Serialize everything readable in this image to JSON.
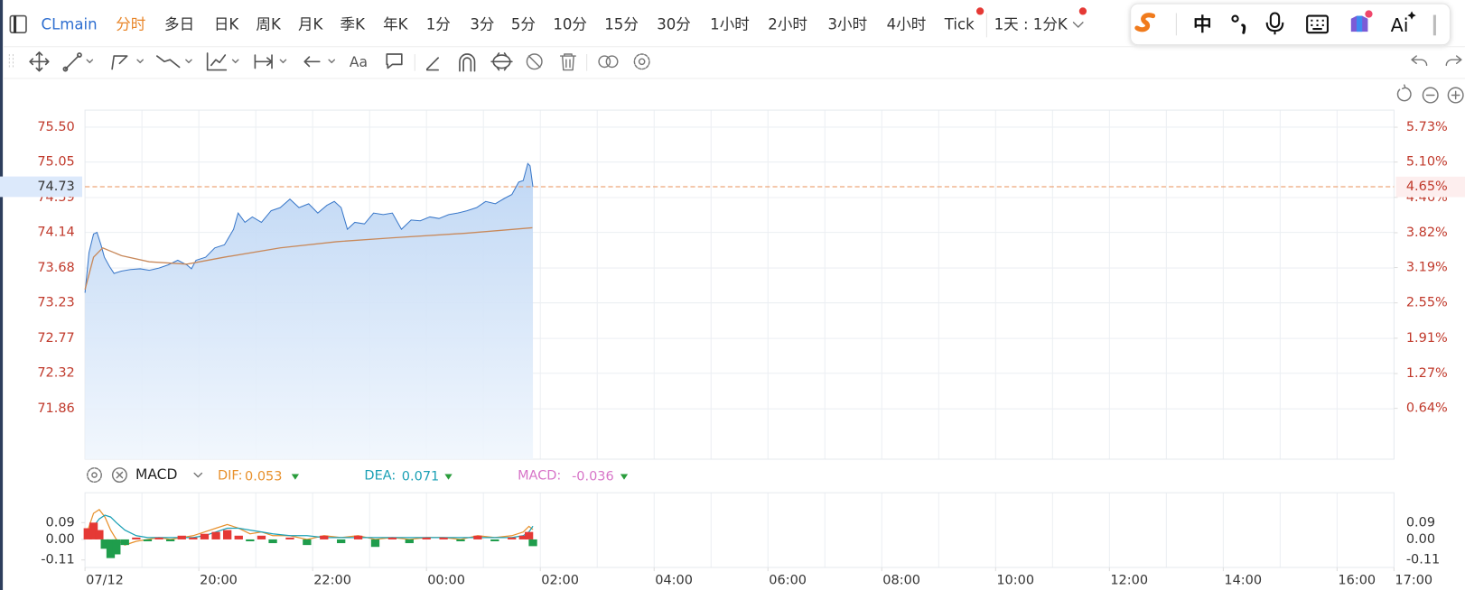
{
  "toolbar": {
    "symbol": "CLmain",
    "periods": [
      "分时",
      "多日",
      "日K",
      "周K",
      "月K",
      "季K",
      "年K",
      "1分",
      "3分",
      "5分",
      "10分",
      "15分",
      "30分",
      "1小时",
      "2小时",
      "3小时",
      "4小时",
      "Tick",
      "1天 : 1分K"
    ],
    "active_period_index": 0
  },
  "ime_toolbar": {
    "mode": "中",
    "ai": "Ai"
  },
  "drawing_toolbar": {
    "text_tool": "Aa"
  },
  "chart_data": [
    {
      "type": "line",
      "x": [
        0,
        0.07,
        0.15,
        0.21,
        0.28,
        0.34,
        0.43,
        0.51,
        0.64,
        0.8,
        0.97,
        1.13,
        1.3,
        1.46,
        1.63,
        1.79,
        1.87,
        1.95,
        2.12,
        2.28,
        2.45,
        2.61,
        2.69,
        2.81,
        2.94,
        3.1,
        3.27,
        3.43,
        3.6,
        3.76,
        3.93,
        4.09,
        4.25,
        4.38,
        4.5,
        4.61,
        4.74,
        4.91,
        5.07,
        5.24,
        5.4,
        5.56,
        5.73,
        5.89,
        6.06,
        6.22,
        6.39,
        6.55,
        6.71,
        6.88,
        7.04,
        7.21,
        7.37,
        7.5,
        7.62,
        7.7,
        7.78,
        7.82,
        7.87
      ],
      "series": [
        {
          "color": "#3a78c9",
          "values": [
            73.36,
            73.88,
            74.12,
            74.14,
            73.98,
            73.82,
            73.7,
            73.61,
            73.64,
            73.66,
            73.67,
            73.65,
            73.68,
            73.72,
            73.78,
            73.72,
            73.67,
            73.78,
            73.82,
            73.94,
            73.98,
            74.18,
            74.39,
            74.27,
            74.34,
            74.27,
            74.42,
            74.46,
            74.57,
            74.46,
            74.51,
            74.39,
            74.49,
            74.54,
            74.46,
            74.18,
            74.27,
            74.25,
            74.39,
            74.37,
            74.39,
            74.18,
            74.3,
            74.29,
            74.34,
            74.32,
            74.37,
            74.39,
            74.42,
            74.46,
            74.54,
            74.51,
            74.58,
            74.63,
            74.79,
            74.81,
            75.03,
            75.0,
            74.73
          ]
        },
        {
          "color": "#c8895b",
          "x": [
            0,
            0.15,
            0.31,
            0.64,
            1.13,
            1.79,
            2.45,
            3.43,
            4.42,
            5.4,
            6.71,
            7.86
          ],
          "values": [
            73.4,
            73.82,
            73.94,
            73.84,
            73.76,
            73.73,
            73.82,
            73.94,
            74.02,
            74.07,
            74.13,
            74.2
          ]
        }
      ],
      "area": true,
      "grid": true,
      "ylim": [
        71.21,
        75.72
      ],
      "yticks": [
        {
          "value": 75.5,
          "label": "75.50"
        },
        75.05,
        74.59,
        74.14,
        73.68,
        73.23,
        72.77,
        72.32,
        71.86
      ],
      "y2lim": [
        -0.28,
        6.04
      ],
      "y2ticks": [
        {
          "value": 5.73,
          "label": "5.73%"
        },
        {
          "value": 5.1,
          "label": "5.10%"
        },
        {
          "value": 4.46,
          "label": "4.46%"
        },
        {
          "value": 3.82,
          "label": "3.82%"
        },
        {
          "value": 3.19,
          "label": "3.19%"
        },
        {
          "value": 2.55,
          "label": "2.55%"
        },
        {
          "value": 1.91,
          "label": "1.91%"
        },
        {
          "value": 1.27,
          "label": "1.27%"
        },
        {
          "value": 0.64,
          "label": "0.64%"
        }
      ],
      "last_change": {
        "value": 4.65,
        "label": "4.65%"
      }
    },
    {
      "type": "macd",
      "title": "MACD",
      "x": [
        0.05,
        0.15,
        0.25,
        0.35,
        0.45,
        0.55,
        0.7,
        0.9,
        1.1,
        1.3,
        1.5,
        1.7,
        1.9,
        2.1,
        2.3,
        2.5,
        2.7,
        2.9,
        3.1,
        3.3,
        3.6,
        3.9,
        4.2,
        4.5,
        4.8,
        5.1,
        5.4,
        5.7,
        6.0,
        6.3,
        6.6,
        6.9,
        7.2,
        7.5,
        7.7,
        7.8,
        7.87
      ],
      "series": [
        {
          "name": "DIF:",
          "color": "#e8912d",
          "values": [
            0.05,
            0.14,
            0.16,
            0.12,
            0.05,
            0.0,
            -0.03,
            -0.01,
            0.0,
            0.01,
            0.0,
            0.01,
            0.02,
            0.04,
            0.06,
            0.08,
            0.06,
            0.03,
            0.04,
            0.02,
            0.02,
            0.0,
            0.02,
            0.01,
            0.02,
            0.0,
            0.01,
            0.0,
            0.01,
            0.01,
            0.0,
            0.02,
            0.01,
            0.02,
            0.04,
            0.07,
            0.053
          ]
        },
        {
          "name": "DEA:",
          "color": "#1ba0b5",
          "values": [
            0.02,
            0.07,
            0.11,
            0.13,
            0.12,
            0.09,
            0.05,
            0.02,
            0.01,
            0.01,
            0.01,
            0.01,
            0.01,
            0.02,
            0.04,
            0.06,
            0.06,
            0.05,
            0.04,
            0.03,
            0.02,
            0.02,
            0.01,
            0.01,
            0.01,
            0.01,
            0.01,
            0.01,
            0.01,
            0.01,
            0.01,
            0.01,
            0.01,
            0.01,
            0.02,
            0.04,
            0.071
          ]
        },
        {
          "name": "MACD:",
          "color": "#d775c8",
          "type": "bar",
          "up_color": "#e53935",
          "down_color": "#1f9d4c",
          "values": [
            0.06,
            0.09,
            0.05,
            -0.05,
            -0.1,
            -0.08,
            -0.03,
            0.01,
            -0.01,
            0.01,
            -0.01,
            0.02,
            0.01,
            0.03,
            0.04,
            0.05,
            0.02,
            -0.01,
            0.02,
            -0.02,
            0.01,
            -0.03,
            0.02,
            -0.02,
            0.02,
            -0.04,
            0.01,
            -0.02,
            0.01,
            0.01,
            -0.01,
            0.02,
            -0.01,
            0.01,
            0.02,
            0.04,
            -0.036
          ]
        }
      ],
      "grid": "x",
      "xlim": [
        0,
        23
      ],
      "xticks": [
        {
          "value": 0,
          "label": "07/12"
        },
        {
          "value": 2,
          "label": "20:00"
        },
        {
          "value": 4,
          "label": "22:00"
        },
        {
          "value": 6,
          "label": "00:00"
        },
        {
          "value": 8,
          "label": "02:00"
        },
        {
          "value": 10,
          "label": "04:00"
        },
        {
          "value": 12,
          "label": "06:00"
        },
        {
          "value": 14,
          "label": "08:00"
        },
        {
          "value": 16,
          "label": "10:00"
        },
        {
          "value": 18,
          "label": "12:00"
        },
        {
          "value": 20,
          "label": "14:00"
        },
        {
          "value": 22,
          "label": "16:00"
        },
        {
          "value": 23,
          "label": "17:00"
        }
      ],
      "ylim": [
        -0.15,
        0.25
      ],
      "yticks": [
        0.09,
        {
          "value": 0,
          "label": "0.00"
        },
        -0.11
      ]
    }
  ]
}
